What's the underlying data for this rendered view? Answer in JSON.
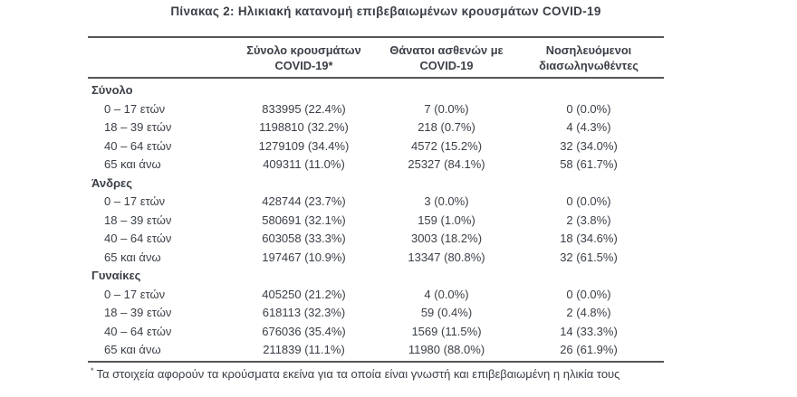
{
  "colors": {
    "background": "#ffffff",
    "text": "#3a3f47",
    "rule": "#55575a"
  },
  "chart_data": {
    "type": "table",
    "title": "Πίνακας 2: Ηλικιακή κατανομή επιβεβαιωμένων κρουσμάτων COVID-19",
    "column_headers": [
      {
        "line1": "Σύνολο κρουσμάτων",
        "line2": "COVID-19*"
      },
      {
        "line1": "Θάνατοι ασθενών με",
        "line2": "COVID-19"
      },
      {
        "line1": "Νοσηλευόμενοι",
        "line2": "διασωληνωθέντες"
      }
    ],
    "sections": [
      {
        "label": "Σύνολο",
        "rows": [
          {
            "age": "0 – 17 ετών",
            "cases": "833995 (22.4%)",
            "deaths": "7 (0.0%)",
            "intubated": "0 (0.0%)"
          },
          {
            "age": "18 – 39 ετών",
            "cases": "1198810 (32.2%)",
            "deaths": "218 (0.7%)",
            "intubated": "4 (4.3%)"
          },
          {
            "age": "40 – 64 ετών",
            "cases": "1279109 (34.4%)",
            "deaths": "4572 (15.2%)",
            "intubated": "32 (34.0%)"
          },
          {
            "age": "65 και άνω",
            "cases": "409311 (11.0%)",
            "deaths": "25327 (84.1%)",
            "intubated": "58 (61.7%)"
          }
        ]
      },
      {
        "label": "Άνδρες",
        "rows": [
          {
            "age": "0 – 17 ετών",
            "cases": "428744 (23.7%)",
            "deaths": "3 (0.0%)",
            "intubated": "0 (0.0%)"
          },
          {
            "age": "18 – 39 ετών",
            "cases": "580691 (32.1%)",
            "deaths": "159 (1.0%)",
            "intubated": "2 (3.8%)"
          },
          {
            "age": "40 – 64 ετών",
            "cases": "603058 (33.3%)",
            "deaths": "3003 (18.2%)",
            "intubated": "18 (34.6%)"
          },
          {
            "age": "65 και άνω",
            "cases": "197467 (10.9%)",
            "deaths": "13347 (80.8%)",
            "intubated": "32 (61.5%)"
          }
        ]
      },
      {
        "label": "Γυναίκες",
        "rows": [
          {
            "age": "0 – 17 ετών",
            "cases": "405250 (21.2%)",
            "deaths": "4 (0.0%)",
            "intubated": "0 (0.0%)"
          },
          {
            "age": "18 – 39 ετών",
            "cases": "618113 (32.3%)",
            "deaths": "59 (0.4%)",
            "intubated": "2 (4.8%)"
          },
          {
            "age": "40 – 64 ετών",
            "cases": "676036 (35.4%)",
            "deaths": "1569 (11.5%)",
            "intubated": "14 (33.3%)"
          },
          {
            "age": "65 και άνω",
            "cases": "211839 (11.1%)",
            "deaths": "11980 (88.0%)",
            "intubated": "26 (61.9%)"
          }
        ]
      }
    ],
    "footnote_marker": "*",
    "footnote_text": "Τα στοιχεία αφορούν τα κρούσματα εκείνα για τα οποία είναι γνωστή και επιβεβαιωμένη η ηλικία τους"
  }
}
